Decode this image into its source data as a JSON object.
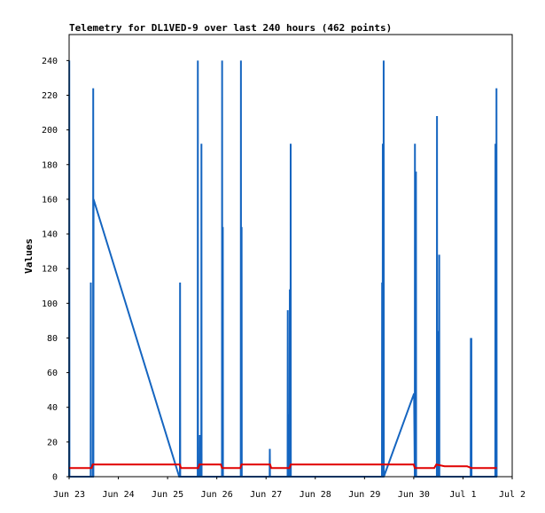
{
  "chart_data": {
    "type": "line",
    "title": "Telemetry for DL1VED-9 over last 240 hours (462 points)",
    "ylabel": "Values",
    "xlabel": "",
    "ylim": [
      0,
      255
    ],
    "yticks": [
      0,
      20,
      40,
      60,
      80,
      100,
      120,
      140,
      160,
      180,
      200,
      220,
      240
    ],
    "xlim": [
      "2025-06-23 00:00",
      "2025-07-02 00:00"
    ],
    "x_tick_labels": [
      "Jun 23",
      "Jun 24",
      "Jun 25",
      "Jun 26",
      "Jun 27",
      "Jun 28",
      "Jun 29",
      "Jun 30",
      "Jul 1",
      "Jul 2"
    ],
    "grid": false,
    "legend": "none",
    "series": [
      {
        "color": "#1565c0",
        "points": [
          [
            "2025-06-23 00:00",
            0
          ],
          [
            "2025-06-23 00:05",
            240
          ],
          [
            "2025-06-23 00:10",
            0
          ],
          [
            "2025-06-23 10:30",
            0
          ],
          [
            "2025-06-23 10:35",
            112
          ],
          [
            "2025-06-23 10:40",
            0
          ],
          [
            "2025-06-23 11:40",
            0
          ],
          [
            "2025-06-23 11:45",
            224
          ],
          [
            "2025-06-23 11:50",
            0
          ],
          [
            "2025-06-23 11:55",
            160
          ],
          [
            "2025-06-25 05:40",
            0
          ],
          [
            "2025-06-25 06:00",
            0
          ],
          [
            "2025-06-25 06:05",
            112
          ],
          [
            "2025-06-25 06:10",
            0
          ],
          [
            "2025-06-25 14:40",
            0
          ],
          [
            "2025-06-25 14:45",
            240
          ],
          [
            "2025-06-25 14:50",
            0
          ],
          [
            "2025-06-25 15:40",
            0
          ],
          [
            "2025-06-25 15:45",
            24
          ],
          [
            "2025-06-25 15:50",
            0
          ],
          [
            "2025-06-25 16:25",
            0
          ],
          [
            "2025-06-25 16:30",
            192
          ],
          [
            "2025-06-25 16:35",
            0
          ],
          [
            "2025-06-26 02:30",
            0
          ],
          [
            "2025-06-26 02:35",
            240
          ],
          [
            "2025-06-26 02:40",
            0
          ],
          [
            "2025-06-26 02:50",
            0
          ],
          [
            "2025-06-26 02:55",
            144
          ],
          [
            "2025-06-26 03:00",
            0
          ],
          [
            "2025-06-26 11:40",
            0
          ],
          [
            "2025-06-26 11:45",
            240
          ],
          [
            "2025-06-26 11:50",
            0
          ],
          [
            "2025-06-26 12:00",
            0
          ],
          [
            "2025-06-26 12:05",
            144
          ],
          [
            "2025-06-26 12:10",
            0
          ],
          [
            "2025-06-27 01:45",
            0
          ],
          [
            "2025-06-27 01:50",
            16
          ],
          [
            "2025-06-27 01:55",
            0
          ],
          [
            "2025-06-27 10:30",
            0
          ],
          [
            "2025-06-27 10:35",
            96
          ],
          [
            "2025-06-27 10:40",
            0
          ],
          [
            "2025-06-27 11:10",
            0
          ],
          [
            "2025-06-27 11:15",
            36
          ],
          [
            "2025-06-27 11:20",
            0
          ],
          [
            "2025-06-27 11:30",
            0
          ],
          [
            "2025-06-27 11:35",
            108
          ],
          [
            "2025-06-27 11:40",
            0
          ],
          [
            "2025-06-27 11:55",
            0
          ],
          [
            "2025-06-27 12:00",
            192
          ],
          [
            "2025-06-27 12:05",
            0
          ],
          [
            "2025-06-29 08:30",
            0
          ],
          [
            "2025-06-29 08:35",
            112
          ],
          [
            "2025-06-29 08:40",
            0
          ],
          [
            "2025-06-29 08:50",
            0
          ],
          [
            "2025-06-29 08:55",
            192
          ],
          [
            "2025-06-29 09:00",
            0
          ],
          [
            "2025-06-29 09:15",
            0
          ],
          [
            "2025-06-29 09:20",
            240
          ],
          [
            "2025-06-29 09:25",
            0
          ],
          [
            "2025-06-30 00:10",
            48
          ],
          [
            "2025-06-30 00:30",
            0
          ],
          [
            "2025-06-30 00:35",
            192
          ],
          [
            "2025-06-30 00:40",
            0
          ],
          [
            "2025-06-30 01:00",
            0
          ],
          [
            "2025-06-30 01:05",
            176
          ],
          [
            "2025-06-30 01:10",
            0
          ],
          [
            "2025-06-30 11:15",
            0
          ],
          [
            "2025-06-30 11:20",
            208
          ],
          [
            "2025-06-30 11:25",
            0
          ],
          [
            "2025-06-30 11:50",
            0
          ],
          [
            "2025-06-30 11:55",
            84
          ],
          [
            "2025-06-30 12:00",
            0
          ],
          [
            "2025-06-30 12:20",
            0
          ],
          [
            "2025-06-30 12:25",
            128
          ],
          [
            "2025-06-30 12:30",
            0
          ],
          [
            "2025-07-01 03:45",
            0
          ],
          [
            "2025-07-01 03:50",
            80
          ],
          [
            "2025-07-01 03:55",
            0
          ],
          [
            "2025-07-01 04:00",
            0
          ],
          [
            "2025-07-01 04:05",
            80
          ],
          [
            "2025-07-01 04:10",
            0
          ],
          [
            "2025-07-01 15:45",
            0
          ],
          [
            "2025-07-01 15:50",
            192
          ],
          [
            "2025-07-01 15:55",
            0
          ],
          [
            "2025-07-01 16:15",
            0
          ],
          [
            "2025-07-01 16:20",
            224
          ],
          [
            "2025-07-01 16:25",
            0
          ]
        ]
      },
      {
        "color": "#e00000",
        "points": [
          [
            "2025-06-23 00:00",
            5
          ],
          [
            "2025-06-23 11:00",
            5
          ],
          [
            "2025-06-23 11:30",
            7
          ],
          [
            "2025-06-25 06:00",
            7
          ],
          [
            "2025-06-25 06:30",
            5
          ],
          [
            "2025-06-25 15:00",
            5
          ],
          [
            "2025-06-25 15:30",
            7
          ],
          [
            "2025-06-26 02:00",
            7
          ],
          [
            "2025-06-26 02:30",
            5
          ],
          [
            "2025-06-26 11:30",
            5
          ],
          [
            "2025-06-26 12:00",
            7
          ],
          [
            "2025-06-27 02:00",
            7
          ],
          [
            "2025-06-27 02:30",
            5
          ],
          [
            "2025-06-27 11:30",
            5
          ],
          [
            "2025-06-27 12:00",
            7
          ],
          [
            "2025-06-30 00:00",
            7
          ],
          [
            "2025-06-30 00:30",
            5
          ],
          [
            "2025-06-30 10:00",
            5
          ],
          [
            "2025-06-30 11:00",
            7
          ],
          [
            "2025-06-30 15:00",
            6
          ],
          [
            "2025-07-01 02:00",
            6
          ],
          [
            "2025-07-01 04:00",
            5
          ],
          [
            "2025-07-01 16:30",
            5
          ]
        ]
      }
    ]
  }
}
